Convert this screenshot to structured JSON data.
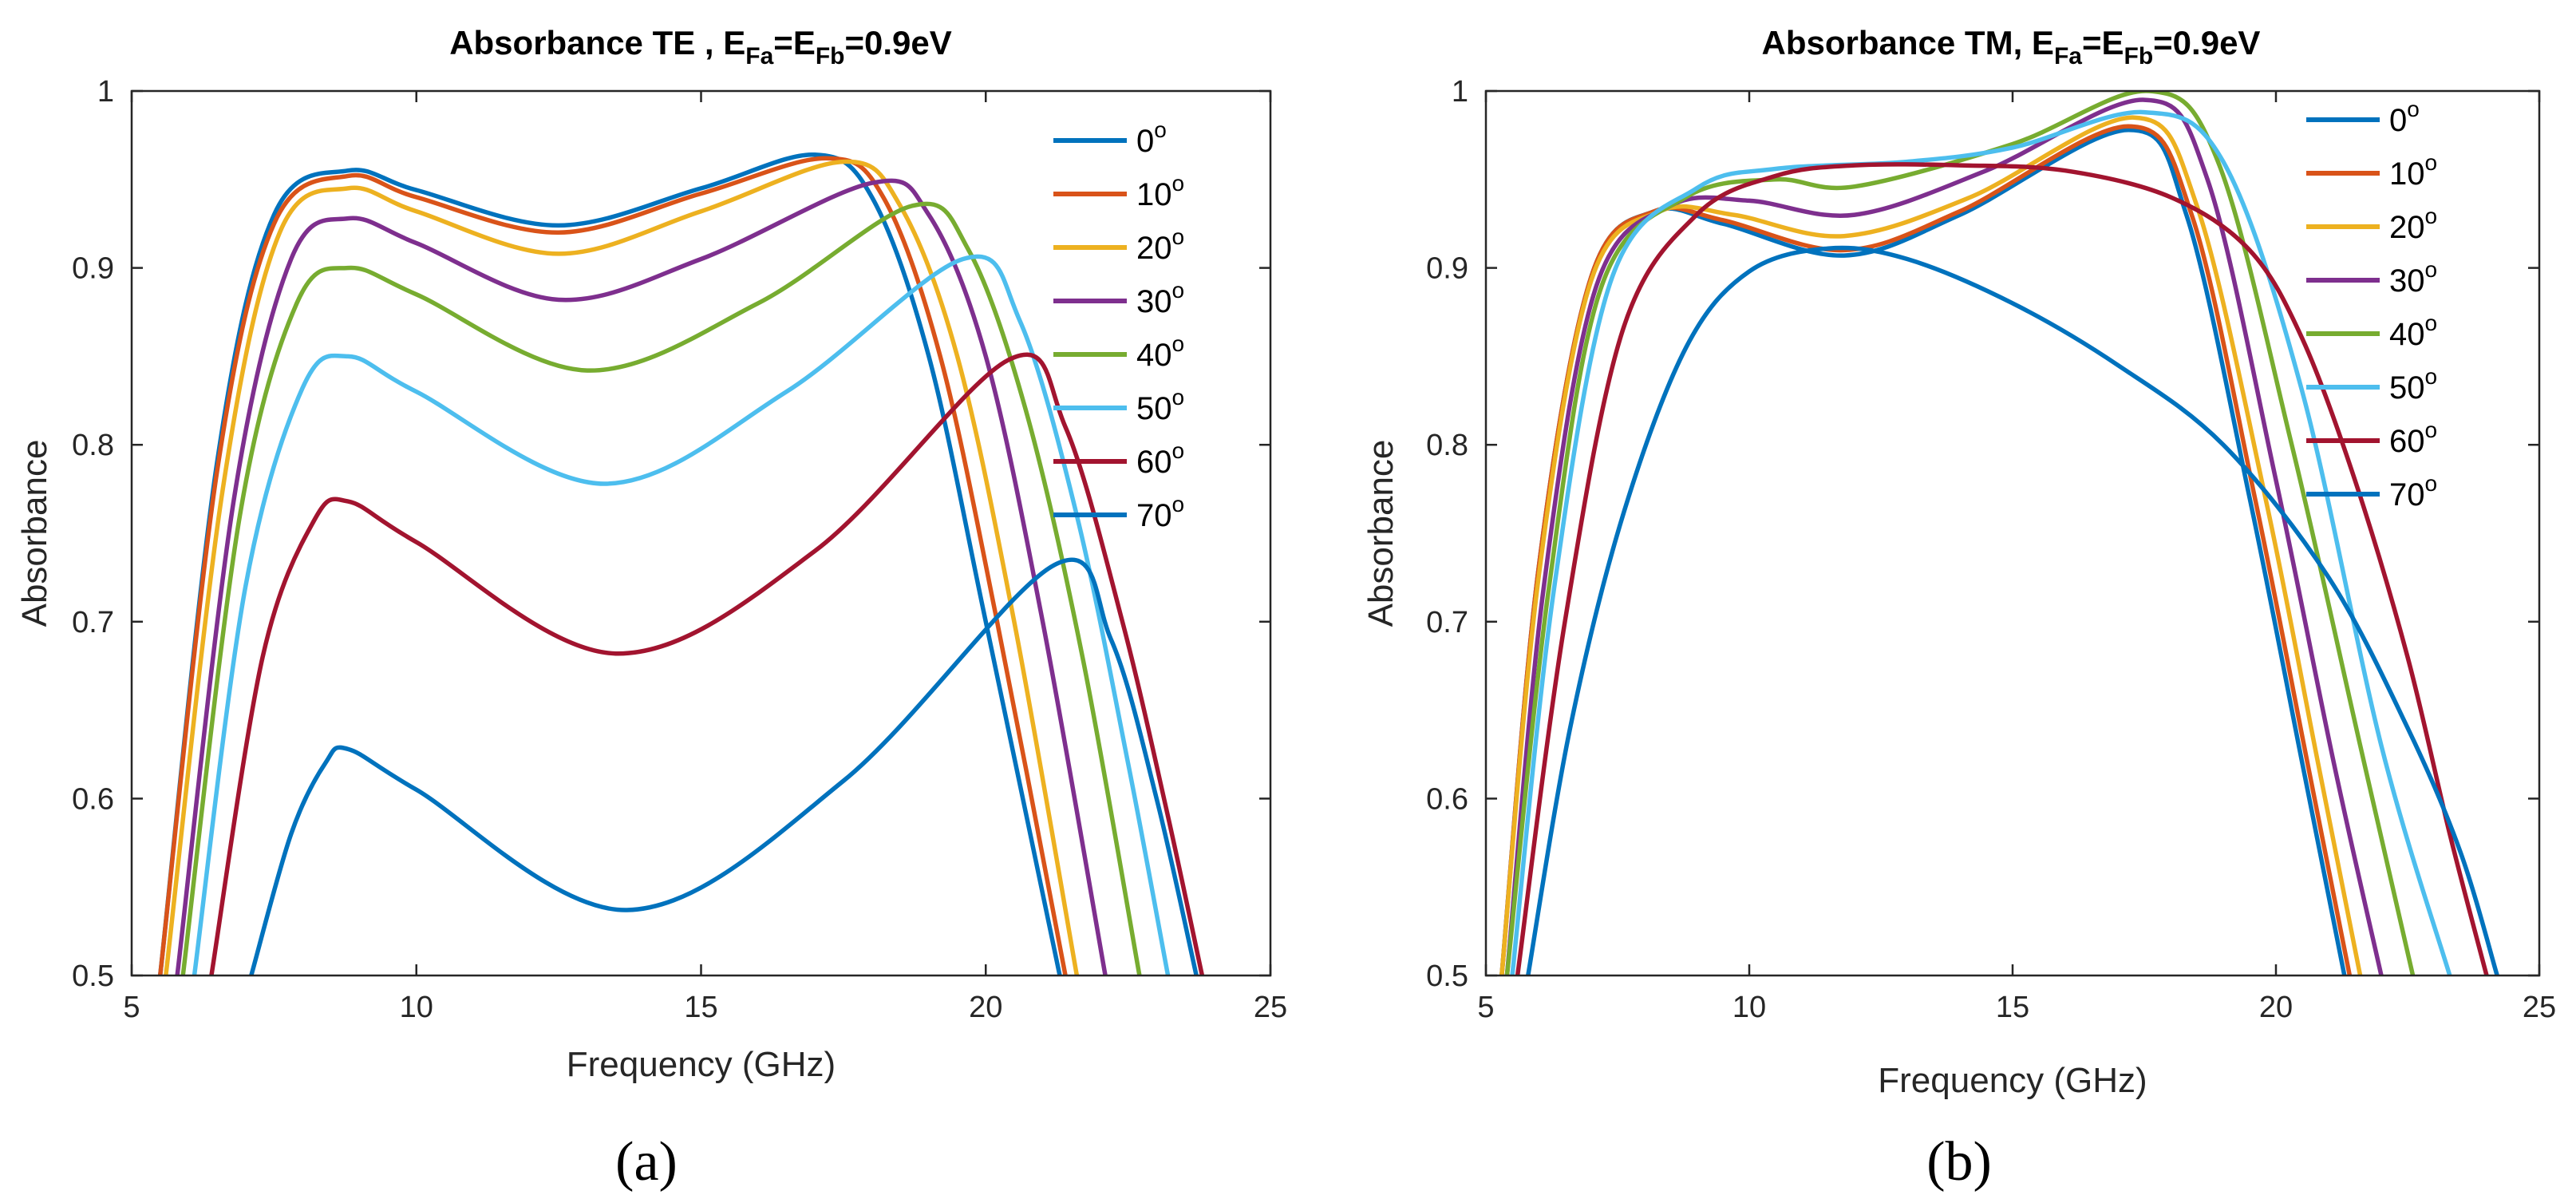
{
  "chart_data": [
    {
      "id": "a",
      "type": "line",
      "caption": "(a)",
      "title_parts": {
        "pre": "Absorbance TE , E",
        "sub1": "Fa",
        "mid": "=E",
        "sub2": "Fb",
        "post": "=0.9eV"
      },
      "xlabel": "Frequency (GHz)",
      "ylabel": "Absorbance",
      "xlim": [
        5,
        25
      ],
      "ylim": [
        0.5,
        1
      ],
      "xticks": [
        "5",
        "10",
        "15",
        "20",
        "25"
      ],
      "yticks": [
        "0.5",
        "0.6",
        "0.7",
        "0.8",
        "0.9",
        "1"
      ],
      "legend_position": "top-right",
      "series": [
        {
          "name": "0",
          "color": "#0072BD",
          "points": [
            [
              5.5,
              0.5
            ],
            [
              6.5,
              0.79
            ],
            [
              7.5,
              0.93
            ],
            [
              8.8,
              0.955
            ],
            [
              10,
              0.944
            ],
            [
              12.5,
              0.924
            ],
            [
              15,
              0.945
            ],
            [
              17,
              0.964
            ],
            [
              18,
              0.94
            ],
            [
              19,
              0.85
            ],
            [
              20,
              0.7
            ],
            [
              21.3,
              0.5
            ]
          ]
        },
        {
          "name": "10",
          "color": "#D95319",
          "points": [
            [
              5.5,
              0.5
            ],
            [
              6.5,
              0.785
            ],
            [
              7.5,
              0.925
            ],
            [
              8.8,
              0.952
            ],
            [
              10,
              0.94
            ],
            [
              12.5,
              0.92
            ],
            [
              15,
              0.942
            ],
            [
              17.2,
              0.962
            ],
            [
              18.2,
              0.94
            ],
            [
              19.2,
              0.85
            ],
            [
              20.2,
              0.7
            ],
            [
              21.4,
              0.5
            ]
          ]
        },
        {
          "name": "20",
          "color": "#EDB120",
          "points": [
            [
              5.6,
              0.5
            ],
            [
              6.6,
              0.775
            ],
            [
              7.6,
              0.92
            ],
            [
              8.8,
              0.945
            ],
            [
              10,
              0.932
            ],
            [
              12.5,
              0.908
            ],
            [
              15,
              0.932
            ],
            [
              17.5,
              0.96
            ],
            [
              18.5,
              0.935
            ],
            [
              19.5,
              0.85
            ],
            [
              20.5,
              0.7
            ],
            [
              21.6,
              0.5
            ]
          ]
        },
        {
          "name": "30",
          "color": "#7E2F8E",
          "points": [
            [
              5.8,
              0.5
            ],
            [
              6.8,
              0.77
            ],
            [
              7.8,
              0.905
            ],
            [
              8.8,
              0.928
            ],
            [
              10,
              0.914
            ],
            [
              12.5,
              0.882
            ],
            [
              15,
              0.905
            ],
            [
              18,
              0.948
            ],
            [
              19,
              0.93
            ],
            [
              20,
              0.85
            ],
            [
              21,
              0.7
            ],
            [
              22.1,
              0.5
            ]
          ]
        },
        {
          "name": "40",
          "color": "#77AC30",
          "points": [
            [
              5.9,
              0.5
            ],
            [
              6.9,
              0.76
            ],
            [
              7.9,
              0.88
            ],
            [
              8.8,
              0.9
            ],
            [
              10,
              0.885
            ],
            [
              13,
              0.842
            ],
            [
              16,
              0.88
            ],
            [
              18.7,
              0.935
            ],
            [
              19.7,
              0.91
            ],
            [
              20.7,
              0.82
            ],
            [
              21.7,
              0.68
            ],
            [
              22.7,
              0.5
            ]
          ]
        },
        {
          "name": "50",
          "color": "#4DBEEE",
          "points": [
            [
              6.1,
              0.5
            ],
            [
              7,
              0.72
            ],
            [
              8,
              0.832
            ],
            [
              8.8,
              0.85
            ],
            [
              10,
              0.83
            ],
            [
              13.3,
              0.778
            ],
            [
              16.5,
              0.83
            ],
            [
              19.6,
              0.905
            ],
            [
              20.6,
              0.87
            ],
            [
              21.6,
              0.76
            ],
            [
              22.5,
              0.62
            ],
            [
              23.2,
              0.5
            ]
          ]
        },
        {
          "name": "60",
          "color": "#A2142F",
          "points": [
            [
              6.4,
              0.5
            ],
            [
              7.3,
              0.68
            ],
            [
              8.2,
              0.757
            ],
            [
              8.8,
              0.768
            ],
            [
              10,
              0.745
            ],
            [
              13.5,
              0.682
            ],
            [
              17,
              0.74
            ],
            [
              20.4,
              0.848
            ],
            [
              21.4,
              0.81
            ],
            [
              22.4,
              0.7
            ],
            [
              23.2,
              0.59
            ],
            [
              23.8,
              0.5
            ]
          ]
        },
        {
          "name": "70",
          "color": "#0072BD",
          "points": [
            [
              7.1,
              0.5
            ],
            [
              7.8,
              0.58
            ],
            [
              8.4,
              0.62
            ],
            [
              8.8,
              0.628
            ],
            [
              10,
              0.605
            ],
            [
              13.7,
              0.537
            ],
            [
              17.5,
              0.61
            ],
            [
              21.2,
              0.732
            ],
            [
              22.2,
              0.69
            ],
            [
              23,
              0.6
            ],
            [
              23.7,
              0.5
            ]
          ]
        }
      ]
    },
    {
      "id": "b",
      "type": "line",
      "caption": "(b)",
      "title_parts": {
        "pre": "Absorbance TM, E",
        "sub1": "Fa",
        "mid": "=E",
        "sub2": "Fb",
        "post": "=0.9eV"
      },
      "xlabel": "Frequency (GHz)",
      "ylabel": "Absorbance",
      "xlim": [
        5,
        25
      ],
      "ylim": [
        0.5,
        1
      ],
      "xticks": [
        "5",
        "10",
        "15",
        "20",
        "25"
      ],
      "yticks": [
        "0.5",
        "0.6",
        "0.7",
        "0.8",
        "0.9",
        "1"
      ],
      "legend_position": "top-right",
      "series": [
        {
          "name": "0",
          "color": "#0072BD",
          "points": [
            [
              5.3,
              0.5
            ],
            [
              6,
              0.73
            ],
            [
              7,
              0.895
            ],
            [
              8.2,
              0.932
            ],
            [
              9.5,
              0.925
            ],
            [
              11.8,
              0.907
            ],
            [
              14,
              0.93
            ],
            [
              17.2,
              0.978
            ],
            [
              18.3,
              0.93
            ],
            [
              19.5,
              0.77
            ],
            [
              20.5,
              0.62
            ],
            [
              21.3,
              0.5
            ]
          ]
        },
        {
          "name": "10",
          "color": "#D95319",
          "points": [
            [
              5.3,
              0.5
            ],
            [
              6,
              0.73
            ],
            [
              7,
              0.895
            ],
            [
              8.2,
              0.932
            ],
            [
              9.5,
              0.927
            ],
            [
              11.8,
              0.91
            ],
            [
              14,
              0.932
            ],
            [
              17.2,
              0.98
            ],
            [
              18.4,
              0.93
            ],
            [
              19.6,
              0.77
            ],
            [
              20.6,
              0.62
            ],
            [
              21.4,
              0.5
            ]
          ]
        },
        {
          "name": "20",
          "color": "#EDB120",
          "points": [
            [
              5.3,
              0.5
            ],
            [
              6,
              0.725
            ],
            [
              7,
              0.893
            ],
            [
              8.3,
              0.932
            ],
            [
              9.7,
              0.93
            ],
            [
              11.8,
              0.918
            ],
            [
              14.2,
              0.94
            ],
            [
              17.3,
              0.985
            ],
            [
              18.5,
              0.935
            ],
            [
              19.8,
              0.77
            ],
            [
              20.8,
              0.62
            ],
            [
              21.6,
              0.5
            ]
          ]
        },
        {
          "name": "30",
          "color": "#7E2F8E",
          "points": [
            [
              5.4,
              0.5
            ],
            [
              6.1,
              0.72
            ],
            [
              7.1,
              0.89
            ],
            [
              8.5,
              0.935
            ],
            [
              10,
              0.938
            ],
            [
              12,
              0.93
            ],
            [
              14.5,
              0.955
            ],
            [
              17.5,
              0.995
            ],
            [
              18.7,
              0.95
            ],
            [
              20,
              0.78
            ],
            [
              21.1,
              0.62
            ],
            [
              22,
              0.5
            ]
          ]
        },
        {
          "name": "40",
          "color": "#77AC30",
          "points": [
            [
              5.4,
              0.5
            ],
            [
              6.2,
              0.72
            ],
            [
              7.2,
              0.89
            ],
            [
              8.8,
              0.94
            ],
            [
              10.5,
              0.95
            ],
            [
              12,
              0.946
            ],
            [
              15,
              0.97
            ],
            [
              17.6,
              1.0
            ],
            [
              18.9,
              0.96
            ],
            [
              20.3,
              0.8
            ],
            [
              21.6,
              0.63
            ],
            [
              22.6,
              0.5
            ]
          ]
        },
        {
          "name": "50",
          "color": "#4DBEEE",
          "points": [
            [
              5.5,
              0.5
            ],
            [
              6.3,
              0.72
            ],
            [
              7.4,
              0.895
            ],
            [
              9,
              0.945
            ],
            [
              10.5,
              0.956
            ],
            [
              13,
              0.96
            ],
            [
              15,
              0.968
            ],
            [
              17.5,
              0.988
            ],
            [
              19,
              0.96
            ],
            [
              20.5,
              0.83
            ],
            [
              22,
              0.63
            ],
            [
              23.3,
              0.5
            ]
          ]
        },
        {
          "name": "60",
          "color": "#A2142F",
          "points": [
            [
              5.6,
              0.5
            ],
            [
              6.5,
              0.7
            ],
            [
              7.6,
              0.865
            ],
            [
              9,
              0.93
            ],
            [
              10.5,
              0.952
            ],
            [
              12,
              0.958
            ],
            [
              14,
              0.958
            ],
            [
              16,
              0.955
            ],
            [
              18,
              0.94
            ],
            [
              19.5,
              0.91
            ],
            [
              20.5,
              0.86
            ],
            [
              21.5,
              0.78
            ],
            [
              22.5,
              0.68
            ],
            [
              23.3,
              0.58
            ],
            [
              24,
              0.5
            ]
          ]
        },
        {
          "name": "70",
          "color": "#0072BD",
          "points": [
            [
              5.8,
              0.5
            ],
            [
              6.6,
              0.64
            ],
            [
              7.6,
              0.76
            ],
            [
              8.8,
              0.855
            ],
            [
              10,
              0.898
            ],
            [
              11.5,
              0.911
            ],
            [
              13,
              0.905
            ],
            [
              15,
              0.88
            ],
            [
              17,
              0.845
            ],
            [
              19,
              0.8
            ],
            [
              21,
              0.725
            ],
            [
              22.5,
              0.64
            ],
            [
              23.5,
              0.57
            ],
            [
              24.2,
              0.5
            ]
          ]
        }
      ]
    }
  ]
}
